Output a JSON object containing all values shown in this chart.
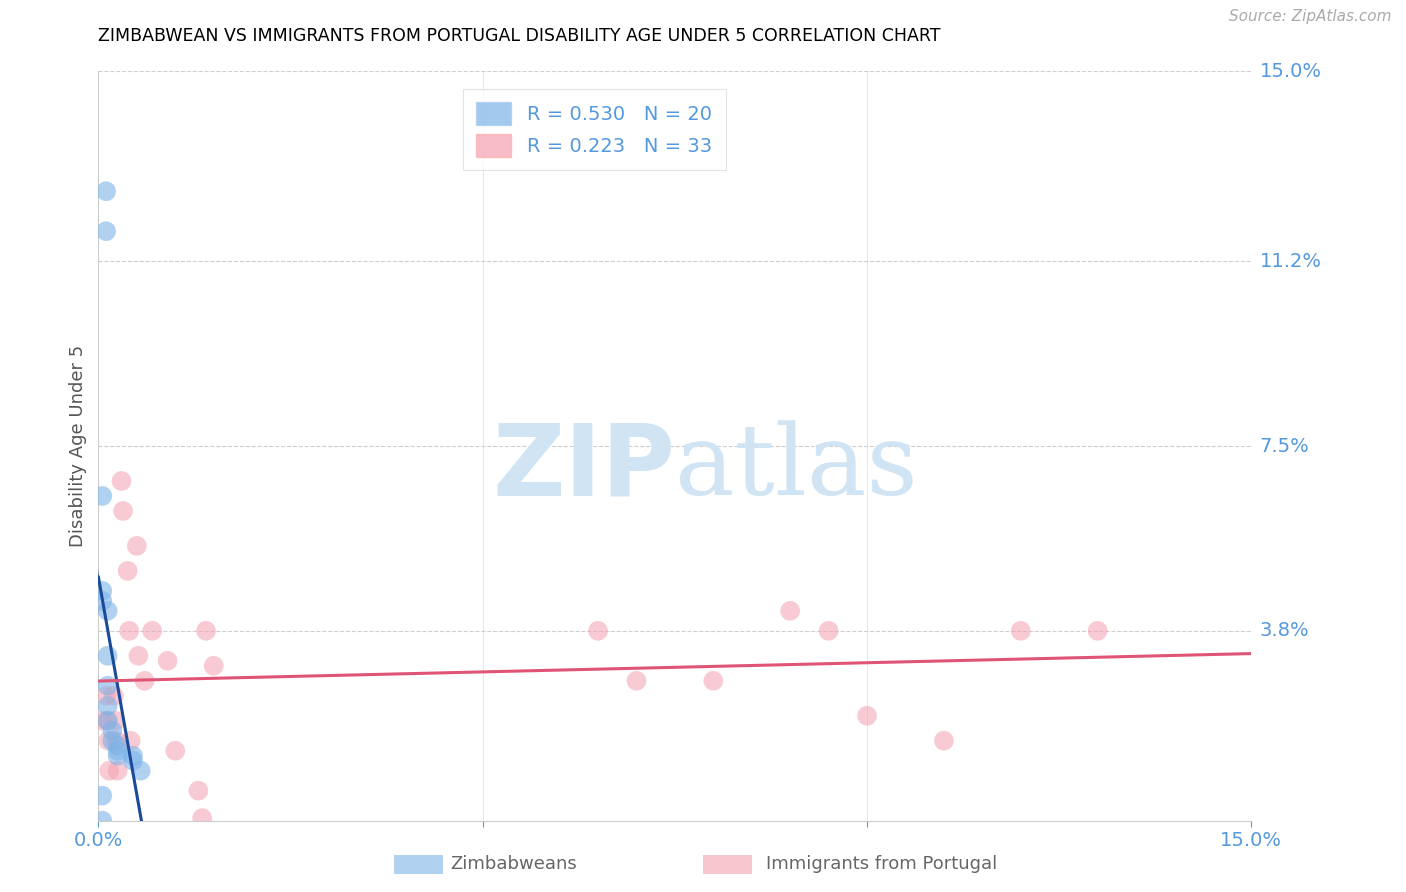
{
  "title": "ZIMBABWEAN VS IMMIGRANTS FROM PORTUGAL DISABILITY AGE UNDER 5 CORRELATION CHART",
  "source": "Source: ZipAtlas.com",
  "ylabel": "Disability Age Under 5",
  "xlim": [
    0,
    15.0
  ],
  "ylim": [
    0,
    15.0
  ],
  "ytick_labels_right": [
    "15.0%",
    "11.2%",
    "7.5%",
    "3.8%"
  ],
  "ytick_vals_right": [
    15.0,
    11.2,
    7.5,
    3.8
  ],
  "legend_r1": "R = 0.530",
  "legend_n1": "N = 20",
  "legend_r2": "R = 0.223",
  "legend_n2": "N = 33",
  "blue_color": "#7EB3E8",
  "pink_color": "#F4A0B0",
  "blue_line_color": "#1A4A9A",
  "pink_line_color": "#E05575",
  "watermark_zip": "ZIP",
  "watermark_atlas": "atlas",
  "watermark_color": "#D0E4F4",
  "zimbabwean_x": [
    0.1,
    0.1,
    0.05,
    0.05,
    0.05,
    0.12,
    0.12,
    0.12,
    0.12,
    0.12,
    0.18,
    0.18,
    0.25,
    0.25,
    0.25,
    0.45,
    0.45,
    0.55,
    0.05,
    0.05
  ],
  "zimbabwean_y": [
    12.6,
    11.8,
    6.5,
    4.6,
    4.4,
    4.2,
    3.3,
    2.7,
    2.3,
    2.0,
    1.8,
    1.6,
    1.5,
    1.4,
    1.3,
    1.3,
    1.2,
    1.0,
    0.5,
    0.0
  ],
  "portugal_x": [
    0.05,
    0.1,
    0.12,
    0.13,
    0.14,
    0.2,
    0.22,
    0.23,
    0.25,
    0.3,
    0.32,
    0.38,
    0.4,
    0.42,
    0.5,
    0.52,
    0.6,
    0.7,
    0.9,
    1.0,
    1.3,
    1.35,
    1.4,
    1.5,
    6.5,
    7.0,
    8.0,
    9.0,
    9.5,
    10.0,
    11.0,
    12.0,
    13.0
  ],
  "portugal_y": [
    2.0,
    2.5,
    2.0,
    1.6,
    1.0,
    2.5,
    2.0,
    1.6,
    1.0,
    6.8,
    6.2,
    5.0,
    3.8,
    1.6,
    5.5,
    3.3,
    2.8,
    3.8,
    3.2,
    1.4,
    0.6,
    0.05,
    3.8,
    3.1,
    3.8,
    2.8,
    2.8,
    4.2,
    3.8,
    2.1,
    1.6,
    3.8,
    3.8
  ]
}
